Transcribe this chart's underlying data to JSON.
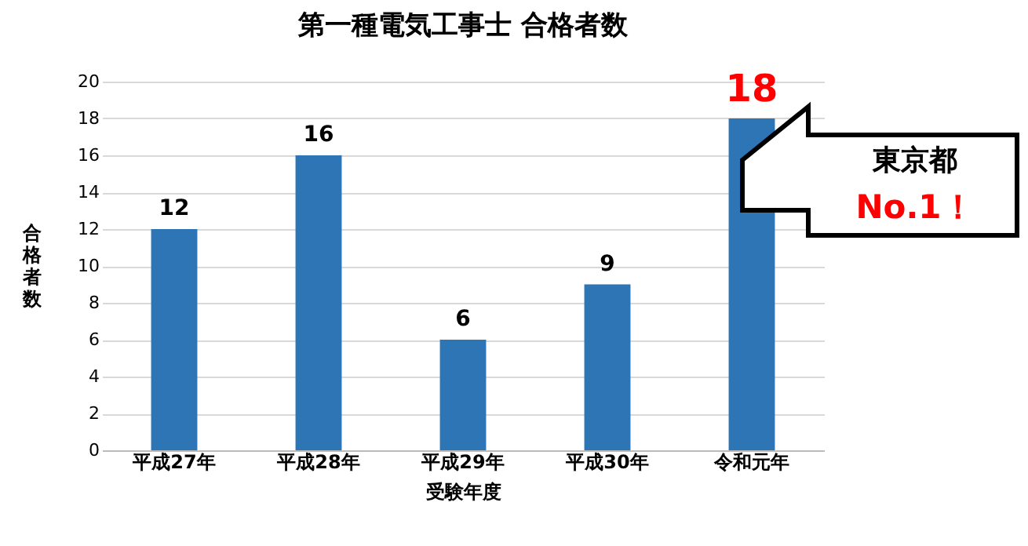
{
  "chart_data": {
    "type": "bar",
    "title": "第一種電気工事士 合格者数",
    "xlabel": "受験年度",
    "ylabel": "合格者数",
    "categories": [
      "平成27年",
      "平成28年",
      "平成29年",
      "平成30年",
      "令和元年"
    ],
    "values": [
      12,
      16,
      6,
      9,
      18
    ],
    "color": "#2e75b6",
    "ylim": [
      0,
      20
    ],
    "yticks": [
      0,
      2,
      4,
      6,
      8,
      10,
      12,
      14,
      16,
      18,
      20
    ],
    "grid": "y",
    "data_labels": true,
    "annotations": [
      "東京都",
      "No.1！"
    ]
  }
}
